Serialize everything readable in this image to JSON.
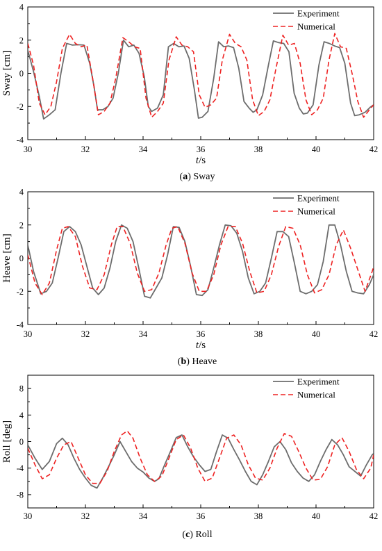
{
  "chart_data": [
    {
      "type": "line",
      "caption_letter": "a",
      "caption_text": "Sway",
      "ylabel": "Sway [cm]",
      "xlabel_italic": "t",
      "xlabel_rest": "/s",
      "xlim": [
        30,
        42
      ],
      "ylim": [
        -4,
        4
      ],
      "xticks": [
        30,
        32,
        34,
        36,
        38,
        40,
        42
      ],
      "yticks": [
        -4,
        -2,
        0,
        2,
        4
      ],
      "legend_position": "top-right",
      "colors": {
        "exp": "#6d6d6d",
        "num": "#ee2222"
      },
      "series": [
        {
          "name": "Experiment",
          "x": [
            30.0,
            30.2,
            30.4,
            30.55,
            30.75,
            30.95,
            31.15,
            31.35,
            31.55,
            31.75,
            31.95,
            32.15,
            32.3,
            32.42,
            32.6,
            32.78,
            32.96,
            33.14,
            33.32,
            33.5,
            33.68,
            33.86,
            34.04,
            34.18,
            34.3,
            34.5,
            34.7,
            34.88,
            35.06,
            35.24,
            35.42,
            35.6,
            35.78,
            35.92,
            36.05,
            36.25,
            36.45,
            36.62,
            36.8,
            36.96,
            37.14,
            37.32,
            37.5,
            37.68,
            37.82,
            37.95,
            38.15,
            38.35,
            38.52,
            38.7,
            38.88,
            39.06,
            39.24,
            39.42,
            39.56,
            39.7,
            39.9,
            40.1,
            40.28,
            40.46,
            40.64,
            40.82,
            41.0,
            41.2,
            41.34,
            41.5,
            41.7,
            41.88,
            42.0
          ],
          "y": [
            1.4,
            0.1,
            -1.4,
            -2.75,
            -2.5,
            -2.2,
            0.0,
            1.8,
            1.7,
            1.72,
            1.7,
            0.6,
            -0.8,
            -2.2,
            -2.2,
            -2.0,
            -1.5,
            0.0,
            2.0,
            1.6,
            1.7,
            1.2,
            -0.2,
            -2.0,
            -2.3,
            -2.1,
            -1.3,
            1.6,
            1.8,
            1.6,
            1.65,
            0.9,
            -1.0,
            -2.7,
            -2.65,
            -2.3,
            -0.3,
            1.9,
            1.6,
            1.65,
            1.55,
            0.3,
            -1.7,
            -2.1,
            -2.35,
            -2.2,
            -1.3,
            0.5,
            1.95,
            1.85,
            1.8,
            1.3,
            -1.2,
            -2.1,
            -2.45,
            -2.4,
            -1.9,
            0.5,
            1.9,
            1.8,
            1.65,
            1.55,
            0.6,
            -1.8,
            -2.55,
            -2.5,
            -2.35,
            -2.05,
            -1.9
          ]
        },
        {
          "name": "Numerical",
          "x": [
            30.0,
            30.2,
            30.4,
            30.6,
            30.8,
            31.0,
            31.2,
            31.45,
            31.65,
            31.85,
            32.05,
            32.25,
            32.45,
            32.65,
            32.85,
            33.05,
            33.3,
            33.5,
            33.7,
            33.9,
            34.1,
            34.3,
            34.5,
            34.7,
            34.9,
            35.15,
            35.35,
            35.55,
            35.75,
            35.95,
            36.15,
            36.35,
            36.55,
            36.75,
            37.0,
            37.2,
            37.4,
            37.6,
            37.8,
            38.0,
            38.2,
            38.4,
            38.6,
            38.85,
            39.05,
            39.25,
            39.45,
            39.65,
            39.85,
            40.05,
            40.25,
            40.45,
            40.65,
            40.85,
            41.05,
            41.25,
            41.45,
            41.65,
            41.85,
            42.0
          ],
          "y": [
            1.8,
            0.5,
            -1.8,
            -2.5,
            -2.0,
            -0.5,
            1.5,
            2.35,
            1.8,
            1.6,
            1.7,
            -0.3,
            -2.5,
            -2.3,
            -1.8,
            -0.3,
            2.15,
            1.9,
            1.6,
            1.5,
            -1.5,
            -2.65,
            -2.3,
            -1.8,
            0.8,
            2.2,
            1.7,
            1.6,
            1.3,
            -1.3,
            -2.05,
            -1.9,
            -1.5,
            0.8,
            2.35,
            1.8,
            1.6,
            0.8,
            -1.6,
            -2.55,
            -2.3,
            -1.6,
            0.2,
            2.3,
            1.7,
            1.8,
            0.6,
            -1.6,
            -2.5,
            -2.2,
            -1.5,
            0.8,
            2.4,
            1.6,
            1.5,
            0.0,
            -1.7,
            -2.65,
            -2.2,
            -1.9
          ]
        }
      ]
    },
    {
      "type": "line",
      "caption_letter": "b",
      "caption_text": "Heave",
      "ylabel": "Heave [cm]",
      "xlabel_italic": "t",
      "xlabel_rest": "/s",
      "xlim": [
        30,
        42
      ],
      "ylim": [
        -4,
        4
      ],
      "xticks": [
        30,
        32,
        34,
        36,
        38,
        40,
        42
      ],
      "yticks": [
        -4,
        -2,
        0,
        2,
        4
      ],
      "legend_position": "top-right",
      "colors": {
        "exp": "#6d6d6d",
        "num": "#ee2222"
      },
      "series": [
        {
          "name": "Experiment",
          "x": [
            30.0,
            30.2,
            30.45,
            30.65,
            30.85,
            31.05,
            31.25,
            31.45,
            31.65,
            31.85,
            32.05,
            32.25,
            32.45,
            32.65,
            32.85,
            33.05,
            33.25,
            33.45,
            33.65,
            33.85,
            34.05,
            34.25,
            34.45,
            34.65,
            34.85,
            35.05,
            35.25,
            35.45,
            35.65,
            35.85,
            36.05,
            36.25,
            36.45,
            36.65,
            36.85,
            37.05,
            37.25,
            37.45,
            37.65,
            37.85,
            38.05,
            38.25,
            38.45,
            38.65,
            38.85,
            39.05,
            39.25,
            39.45,
            39.65,
            39.85,
            40.05,
            40.25,
            40.45,
            40.65,
            40.85,
            41.05,
            41.25,
            41.45,
            41.65,
            41.85,
            42.0
          ],
          "y": [
            0.8,
            -0.8,
            -2.15,
            -2.0,
            -1.5,
            0.0,
            1.6,
            1.9,
            1.6,
            0.8,
            -0.5,
            -1.8,
            -2.2,
            -1.8,
            -0.6,
            1.0,
            2.0,
            1.8,
            1.0,
            -0.6,
            -2.3,
            -2.4,
            -1.8,
            -1.2,
            0.2,
            1.9,
            1.85,
            1.0,
            -0.5,
            -2.2,
            -2.25,
            -1.9,
            -0.6,
            0.8,
            2.0,
            1.95,
            1.5,
            0.4,
            -1.2,
            -2.15,
            -2.0,
            -1.5,
            0.0,
            1.6,
            1.6,
            1.3,
            -0.3,
            -2.0,
            -2.15,
            -2.0,
            -1.6,
            -0.2,
            2.0,
            2.0,
            0.8,
            -0.8,
            -2.0,
            -2.1,
            -2.15,
            -1.6,
            -1.0
          ]
        },
        {
          "name": "Numerical",
          "x": [
            30.0,
            30.25,
            30.5,
            30.75,
            31.0,
            31.2,
            31.4,
            31.65,
            31.9,
            32.15,
            32.4,
            32.65,
            32.9,
            33.1,
            33.3,
            33.55,
            33.8,
            34.05,
            34.3,
            34.55,
            34.8,
            35.0,
            35.2,
            35.45,
            35.7,
            35.95,
            36.2,
            36.45,
            36.7,
            36.95,
            37.2,
            37.45,
            37.7,
            37.95,
            38.2,
            38.45,
            38.7,
            38.95,
            39.2,
            39.45,
            39.7,
            39.95,
            40.2,
            40.45,
            40.7,
            40.95,
            41.2,
            41.45,
            41.7,
            41.95,
            42.0
          ],
          "y": [
            0.2,
            -1.5,
            -2.2,
            -1.5,
            0.5,
            1.8,
            1.9,
            1.3,
            -0.5,
            -1.8,
            -1.9,
            -1.0,
            0.8,
            1.9,
            1.9,
            0.9,
            -0.9,
            -2.0,
            -1.9,
            -0.9,
            0.8,
            1.8,
            1.9,
            0.9,
            -0.9,
            -2.0,
            -2.0,
            -1.0,
            0.8,
            1.9,
            1.9,
            0.9,
            -0.8,
            -2.1,
            -2.0,
            -1.0,
            0.7,
            1.9,
            1.8,
            0.8,
            -1.0,
            -2.1,
            -1.9,
            -1.0,
            0.8,
            1.7,
            0.6,
            -0.7,
            -2.0,
            -0.8,
            -0.5
          ]
        }
      ]
    },
    {
      "type": "line",
      "caption_letter": "c",
      "caption_text": "Roll",
      "ylabel": "Roll [deg]",
      "xlabel_italic": "",
      "xlabel_rest": "",
      "xlim": [
        30,
        42
      ],
      "ylim": [
        -10,
        10
      ],
      "xticks": [
        30,
        32,
        34,
        36,
        38,
        40,
        42
      ],
      "yticks": [
        -8,
        -4,
        0,
        4,
        8
      ],
      "legend_position": "top-right",
      "colors": {
        "exp": "#6d6d6d",
        "num": "#ee2222"
      },
      "series": [
        {
          "name": "Experiment",
          "x": [
            30.0,
            30.25,
            30.5,
            30.75,
            31.0,
            31.2,
            31.4,
            31.6,
            31.8,
            32.0,
            32.2,
            32.4,
            32.6,
            32.8,
            33.0,
            33.2,
            33.4,
            33.6,
            33.8,
            34.0,
            34.2,
            34.4,
            34.55,
            34.75,
            34.95,
            35.15,
            35.35,
            35.55,
            35.75,
            35.95,
            36.15,
            36.35,
            36.55,
            36.75,
            36.95,
            37.15,
            37.35,
            37.55,
            37.75,
            37.95,
            38.15,
            38.35,
            38.55,
            38.75,
            38.95,
            39.15,
            39.35,
            39.55,
            39.75,
            39.95,
            40.15,
            40.35,
            40.55,
            40.75,
            40.95,
            41.15,
            41.35,
            41.55,
            41.75,
            41.95,
            42.0
          ],
          "y": [
            -0.5,
            -2.5,
            -4.2,
            -3.0,
            -0.3,
            0.5,
            -0.5,
            -2.5,
            -4.2,
            -5.5,
            -6.6,
            -7.0,
            -5.5,
            -3.8,
            -2.0,
            0.0,
            -1.5,
            -3.0,
            -4.0,
            -4.6,
            -5.5,
            -6.0,
            -5.6,
            -3.5,
            -1.5,
            0.6,
            1.0,
            -0.8,
            -2.3,
            -3.5,
            -4.5,
            -4.2,
            -1.5,
            1.0,
            0.5,
            -1.2,
            -2.8,
            -4.5,
            -6.0,
            -6.5,
            -5.0,
            -3.0,
            -0.8,
            0.0,
            -1.2,
            -3.2,
            -4.5,
            -5.5,
            -6.0,
            -5.0,
            -3.0,
            -1.2,
            0.3,
            -0.5,
            -2.0,
            -3.8,
            -4.5,
            -5.2,
            -3.5,
            -2.0,
            -1.8
          ]
        },
        {
          "name": "Numerical",
          "x": [
            30.0,
            30.25,
            30.5,
            30.75,
            31.0,
            31.25,
            31.5,
            31.75,
            32.0,
            32.25,
            32.5,
            32.75,
            33.0,
            33.25,
            33.45,
            33.65,
            33.9,
            34.15,
            34.4,
            34.65,
            34.9,
            35.15,
            35.4,
            35.65,
            35.9,
            36.15,
            36.4,
            36.65,
            36.9,
            37.15,
            37.4,
            37.65,
            37.9,
            38.15,
            38.4,
            38.65,
            38.9,
            39.15,
            39.4,
            39.65,
            39.9,
            40.15,
            40.4,
            40.65,
            40.9,
            41.15,
            41.4,
            41.65,
            41.9,
            42.0
          ],
          "y": [
            -1.0,
            -3.5,
            -5.6,
            -5.0,
            -2.5,
            -0.5,
            0.0,
            -2.5,
            -5.0,
            -6.3,
            -6.3,
            -4.5,
            -1.5,
            1.0,
            1.6,
            0.5,
            -2.5,
            -5.0,
            -6.0,
            -5.2,
            -2.5,
            0.3,
            1.0,
            -1.0,
            -4.0,
            -6.0,
            -5.5,
            -2.5,
            0.5,
            1.0,
            -0.5,
            -3.5,
            -5.5,
            -5.8,
            -4.0,
            -1.0,
            1.2,
            0.8,
            -1.5,
            -4.0,
            -5.8,
            -5.7,
            -3.8,
            -0.5,
            0.6,
            -1.5,
            -4.2,
            -5.6,
            -4.0,
            -2.0
          ]
        }
      ]
    }
  ]
}
